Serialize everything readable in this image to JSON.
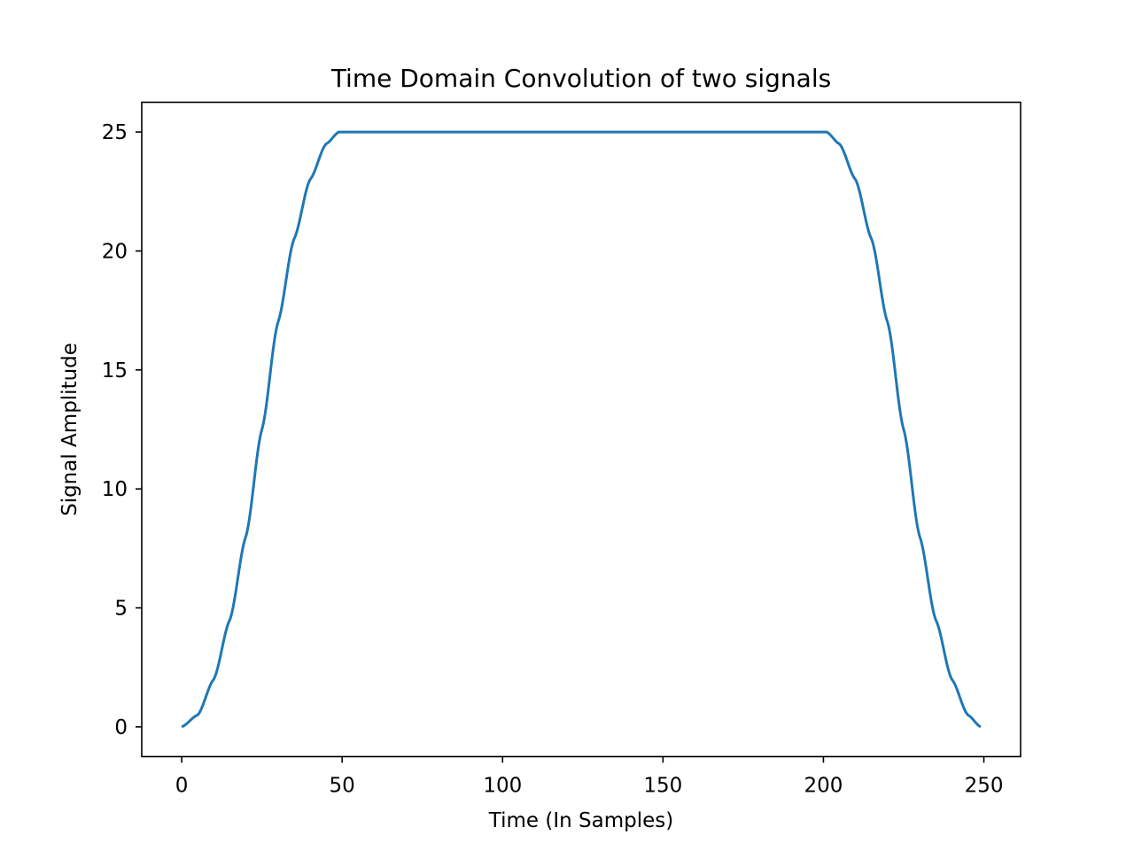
{
  "chart_data": {
    "type": "line",
    "title": "Time Domain Convolution of two signals",
    "xlabel": "Time (In Samples)",
    "ylabel": "Signal Amplitude",
    "xlim": [
      -12.45,
      261.45
    ],
    "ylim": [
      -1.25,
      26.25
    ],
    "xticks": [
      0,
      50,
      100,
      150,
      200,
      250
    ],
    "yticks": [
      0,
      5,
      10,
      15,
      20,
      25
    ],
    "grid": false,
    "legend": "none",
    "line_color": "#1f77b4",
    "series": [
      {
        "x": [
          0,
          5,
          10,
          15,
          20,
          25,
          30,
          35,
          40,
          45,
          49,
          50,
          200,
          201,
          205,
          210,
          215,
          220,
          225,
          230,
          235,
          240,
          245,
          249
        ],
        "y": [
          0,
          0.5,
          2,
          4.5,
          8,
          12.5,
          17,
          20.5,
          23,
          24.5,
          25,
          25,
          25,
          25,
          24.5,
          23,
          20.5,
          17,
          12.5,
          8,
          4.5,
          2,
          0.5,
          0
        ]
      }
    ]
  }
}
